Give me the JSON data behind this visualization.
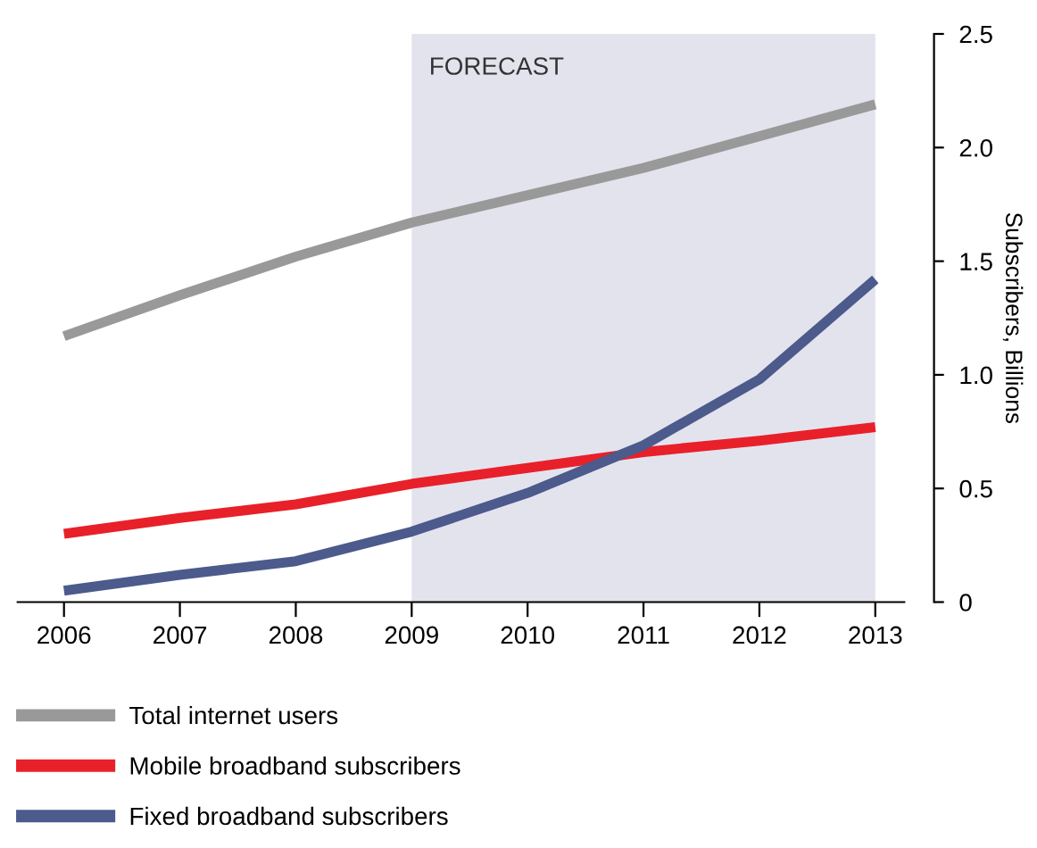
{
  "chart_data": {
    "type": "line",
    "ylabel": "Subscribers, Billions",
    "x": [
      2006,
      2007,
      2008,
      2009,
      2010,
      2011,
      2012,
      2013
    ],
    "series": [
      {
        "name": "Total internet users",
        "color": "#999999",
        "values": [
          1.17,
          1.35,
          1.52,
          1.67,
          1.79,
          1.91,
          2.05,
          2.19
        ]
      },
      {
        "name": "Mobile broadband subscribers",
        "color": "#e8202a",
        "values": [
          0.3,
          0.37,
          0.43,
          0.52,
          0.59,
          0.66,
          0.71,
          0.77
        ]
      },
      {
        "name": "Fixed broadband subscribers",
        "color": "#4c5a8c",
        "values": [
          0.05,
          0.12,
          0.18,
          0.31,
          0.48,
          0.69,
          0.98,
          1.42
        ]
      }
    ],
    "xlim": [
      2005.6,
      2013.25
    ],
    "xticks": [
      2006,
      2007,
      2008,
      2009,
      2010,
      2011,
      2012,
      2013
    ],
    "ylim": [
      0,
      2.5
    ],
    "yticks": [
      0,
      0.5,
      {
        "value": 1,
        "label": "1.0"
      },
      1.5,
      {
        "value": 2,
        "label": "2.0"
      },
      2.5
    ],
    "bands": [
      {
        "axis": "x",
        "from": 2009,
        "to": 2013,
        "label": "FORECAST",
        "color": "#e3e3ee"
      }
    ],
    "legend": "bottom",
    "grid": false,
    "marker": "none",
    "line_style": "solid"
  }
}
